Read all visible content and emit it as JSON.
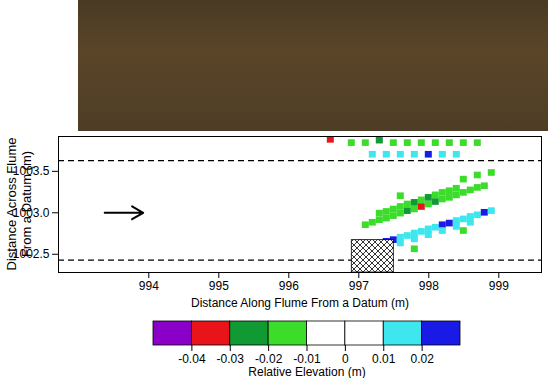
{
  "chart_data": {
    "type": "heatmap",
    "xlabel": "Distance Along Flume From a Datum (m)",
    "ylabel": "Distance Across Flume From a Datum (m)",
    "xlim": [
      992.71,
      999.61
    ],
    "ylim": [
      1002.28,
      1003.92
    ],
    "xticks": [
      994,
      995,
      996,
      997,
      998,
      999
    ],
    "yticks": [
      {
        "value": 1002.5,
        "label": "1002.5"
      },
      {
        "value": 1003,
        "label": "1003.0"
      },
      {
        "value": 1003.5,
        "label": "1003.5"
      }
    ],
    "walls": [
      1003.63,
      1002.43
    ],
    "arrow": {
      "x": [
        993.37,
        993.92
      ],
      "y": 1003.0
    },
    "obstacle": {
      "x": [
        996.9,
        997.5
      ],
      "y": [
        1002.28,
        1002.67
      ]
    },
    "cell_size": [
      0.1,
      0.08
    ],
    "cells": [
      [
        997.1,
        1002.85,
        -0.015
      ],
      [
        997.2,
        1002.88,
        -0.015
      ],
      [
        997.3,
        1002.91,
        -0.015
      ],
      [
        997.4,
        1002.93,
        -0.015
      ],
      [
        997.5,
        1002.96,
        -0.015
      ],
      [
        997.6,
        1002.99,
        -0.015
      ],
      [
        997.7,
        1003.02,
        -0.025
      ],
      [
        997.8,
        1003.04,
        -0.015
      ],
      [
        997.9,
        1003.07,
        -0.035
      ],
      [
        998.0,
        1003.1,
        -0.015
      ],
      [
        998.1,
        1003.13,
        -0.025
      ],
      [
        998.2,
        1003.16,
        -0.015
      ],
      [
        998.3,
        1003.18,
        -0.015
      ],
      [
        998.4,
        1003.21,
        -0.015
      ],
      [
        998.5,
        1003.24,
        -0.015
      ],
      [
        998.6,
        1003.27,
        -0.015
      ],
      [
        998.7,
        1003.3,
        -0.015
      ],
      [
        998.8,
        1003.32,
        -0.015
      ],
      [
        997.3,
        1002.99,
        -0.012
      ],
      [
        997.4,
        1003.01,
        -0.015
      ],
      [
        997.5,
        1003.04,
        -0.012
      ],
      [
        997.6,
        1003.07,
        -0.015
      ],
      [
        997.7,
        1003.1,
        -0.015
      ],
      [
        997.8,
        1003.12,
        -0.025
      ],
      [
        997.9,
        1003.15,
        -0.015
      ],
      [
        998.0,
        1003.18,
        -0.025
      ],
      [
        998.1,
        1003.21,
        -0.015
      ],
      [
        998.2,
        1003.24,
        -0.012
      ],
      [
        998.3,
        1003.26,
        -0.015
      ],
      [
        998.4,
        1003.29,
        -0.012
      ],
      [
        997.6,
        1003.2,
        -0.015
      ],
      [
        998.5,
        1003.4,
        -0.015
      ],
      [
        998.7,
        1003.45,
        -0.012
      ],
      [
        998.9,
        1003.48,
        -0.015
      ],
      [
        997.4,
        1002.48,
        -0.015
      ],
      [
        997.8,
        1002.56,
        -0.015
      ],
      [
        998.5,
        1002.78,
        -0.015
      ],
      [
        997.2,
        1002.6,
        0.015
      ],
      [
        997.3,
        1002.62,
        0.015
      ],
      [
        997.4,
        1002.65,
        0.025
      ],
      [
        997.5,
        1002.67,
        0.025
      ],
      [
        997.6,
        1002.7,
        0.015
      ],
      [
        997.7,
        1002.72,
        0.015
      ],
      [
        997.8,
        1002.75,
        0.015
      ],
      [
        997.9,
        1002.77,
        0.015
      ],
      [
        998.0,
        1002.8,
        0.015
      ],
      [
        998.1,
        1002.82,
        0.015
      ],
      [
        998.2,
        1002.85,
        0.025
      ],
      [
        998.3,
        1002.87,
        0.025
      ],
      [
        998.4,
        1002.9,
        0.015
      ],
      [
        998.5,
        1002.92,
        0.015
      ],
      [
        998.6,
        1002.95,
        0.015
      ],
      [
        998.7,
        1002.97,
        0.015
      ],
      [
        998.8,
        1003.0,
        0.025
      ],
      [
        998.9,
        1003.02,
        0.015
      ],
      [
        997.6,
        1002.63,
        0.015
      ],
      [
        997.8,
        1002.68,
        0.015
      ],
      [
        998.0,
        1002.73,
        0.015
      ],
      [
        998.2,
        1002.78,
        0.015
      ],
      [
        998.4,
        1002.83,
        0.015
      ],
      [
        998.6,
        1002.88,
        0.015
      ],
      [
        996.6,
        1003.88,
        -0.035
      ],
      [
        996.9,
        1003.84,
        -0.015
      ],
      [
        997.1,
        1003.84,
        -0.015
      ],
      [
        997.3,
        1003.87,
        -0.025
      ],
      [
        997.5,
        1003.84,
        -0.015
      ],
      [
        997.7,
        1003.84,
        -0.015
      ],
      [
        997.9,
        1003.84,
        -0.015
      ],
      [
        998.1,
        1003.84,
        -0.015
      ],
      [
        998.3,
        1003.84,
        -0.015
      ],
      [
        998.5,
        1003.84,
        -0.015
      ],
      [
        998.7,
        1003.84,
        -0.015
      ],
      [
        997.2,
        1003.7,
        0.015
      ],
      [
        997.4,
        1003.7,
        0.015
      ],
      [
        997.6,
        1003.7,
        0.015
      ],
      [
        997.8,
        1003.7,
        0.015
      ],
      [
        998.0,
        1003.7,
        0.025
      ],
      [
        998.2,
        1003.7,
        0.015
      ],
      [
        998.4,
        1003.7,
        0.015
      ]
    ],
    "colorbar": {
      "label": "Relative Elevation (m)",
      "range": [
        -0.05,
        0.03
      ],
      "ticks": [
        -0.04,
        -0.03,
        -0.02,
        -0.01,
        0,
        0.01,
        0.02
      ],
      "colors": [
        "#8b00c8",
        "#e8141a",
        "#119a33",
        "#3bdc2a",
        "#ffffff",
        "#ffffff",
        "#3ee6ee",
        "#1a1ae6"
      ]
    }
  }
}
